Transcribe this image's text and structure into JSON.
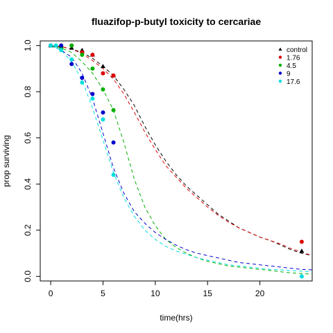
{
  "chart_data": {
    "type": "scatter",
    "title": "fluazifop-p-butyl toxicity to cercariae",
    "xlabel": "time(hrs)",
    "ylabel": "prop surviving",
    "xlim": [
      -1,
      25
    ],
    "ylim": [
      -0.02,
      1.02
    ],
    "xticks": [
      0,
      5,
      10,
      15,
      20
    ],
    "yticks": [
      0.0,
      0.2,
      0.4,
      0.6,
      0.8,
      1.0
    ],
    "grid": false,
    "legend_position": "top-right",
    "series": [
      {
        "name": "control",
        "color": "#000000",
        "marker": "triangle",
        "points": [
          [
            0,
            1.0
          ],
          [
            0.5,
            1.0
          ],
          [
            1,
            1.0
          ],
          [
            2,
            0.99
          ],
          [
            3,
            0.98
          ],
          [
            4,
            0.96
          ],
          [
            5,
            0.91
          ],
          [
            6,
            0.87
          ],
          [
            24,
            0.11
          ]
        ],
        "fit": [
          [
            0,
            1.0
          ],
          [
            1,
            0.995
          ],
          [
            2,
            0.985
          ],
          [
            3,
            0.97
          ],
          [
            4,
            0.945
          ],
          [
            5,
            0.91
          ],
          [
            6,
            0.87
          ],
          [
            7,
            0.81
          ],
          [
            8,
            0.74
          ],
          [
            9,
            0.65
          ],
          [
            10,
            0.57
          ],
          [
            11,
            0.5
          ],
          [
            12,
            0.44
          ],
          [
            13,
            0.39
          ],
          [
            14,
            0.35
          ],
          [
            15,
            0.31
          ],
          [
            16,
            0.27
          ],
          [
            17,
            0.24
          ],
          [
            18,
            0.21
          ],
          [
            19,
            0.19
          ],
          [
            20,
            0.17
          ],
          [
            21,
            0.155
          ],
          [
            22,
            0.135
          ],
          [
            23,
            0.115
          ],
          [
            24,
            0.1
          ],
          [
            25,
            0.09
          ]
        ]
      },
      {
        "name": "1.76",
        "color": "#df0000",
        "marker": "circle",
        "points": [
          [
            0,
            1.0
          ],
          [
            1,
            1.0
          ],
          [
            2,
            1.0
          ],
          [
            3,
            0.97
          ],
          [
            4,
            0.96
          ],
          [
            5,
            0.88
          ],
          [
            6,
            0.87
          ],
          [
            24,
            0.15
          ]
        ],
        "fit": [
          [
            0,
            1.0
          ],
          [
            1,
            0.995
          ],
          [
            2,
            0.985
          ],
          [
            3,
            0.965
          ],
          [
            4,
            0.935
          ],
          [
            5,
            0.9
          ],
          [
            6,
            0.855
          ],
          [
            7,
            0.79
          ],
          [
            8,
            0.71
          ],
          [
            9,
            0.625
          ],
          [
            10,
            0.55
          ],
          [
            11,
            0.48
          ],
          [
            12,
            0.43
          ],
          [
            13,
            0.38
          ],
          [
            14,
            0.34
          ],
          [
            15,
            0.3
          ],
          [
            16,
            0.265
          ],
          [
            17,
            0.235
          ],
          [
            18,
            0.21
          ],
          [
            19,
            0.19
          ],
          [
            20,
            0.17
          ],
          [
            21,
            0.155
          ],
          [
            22,
            0.14
          ],
          [
            23,
            0.12
          ],
          [
            24,
            0.105
          ],
          [
            25,
            0.09
          ]
        ]
      },
      {
        "name": "4.5",
        "color": "#00b000",
        "marker": "circle",
        "points": [
          [
            0,
            1.0
          ],
          [
            1,
            0.99
          ],
          [
            2,
            1.0
          ],
          [
            3,
            0.96
          ],
          [
            4,
            0.9
          ],
          [
            5,
            0.81
          ],
          [
            6,
            0.72
          ]
        ],
        "fit": [
          [
            0,
            1.0
          ],
          [
            1,
            0.99
          ],
          [
            2,
            0.97
          ],
          [
            3,
            0.93
          ],
          [
            4,
            0.88
          ],
          [
            5,
            0.81
          ],
          [
            6,
            0.72
          ],
          [
            7,
            0.58
          ],
          [
            8,
            0.42
          ],
          [
            9,
            0.3
          ],
          [
            10,
            0.22
          ],
          [
            11,
            0.16
          ],
          [
            12,
            0.125
          ],
          [
            13,
            0.1
          ],
          [
            14,
            0.08
          ],
          [
            15,
            0.065
          ],
          [
            16,
            0.055
          ],
          [
            17,
            0.045
          ],
          [
            18,
            0.04
          ],
          [
            19,
            0.035
          ],
          [
            20,
            0.03
          ],
          [
            21,
            0.025
          ],
          [
            22,
            0.02
          ],
          [
            23,
            0.015
          ],
          [
            24,
            0.012
          ],
          [
            25,
            0.01
          ]
        ]
      },
      {
        "name": "9",
        "color": "#0000cc",
        "marker": "circle",
        "points": [
          [
            0,
            1.0
          ],
          [
            1,
            1.0
          ],
          [
            2,
            0.92
          ],
          [
            3,
            0.86
          ],
          [
            4,
            0.79
          ],
          [
            5,
            0.71
          ],
          [
            6,
            0.58
          ]
        ],
        "fit": [
          [
            0,
            1.0
          ],
          [
            1,
            0.98
          ],
          [
            2,
            0.95
          ],
          [
            3,
            0.88
          ],
          [
            4,
            0.77
          ],
          [
            5,
            0.62
          ],
          [
            6,
            0.47
          ],
          [
            7,
            0.36
          ],
          [
            8,
            0.28
          ],
          [
            9,
            0.23
          ],
          [
            10,
            0.19
          ],
          [
            11,
            0.16
          ],
          [
            12,
            0.135
          ],
          [
            13,
            0.115
          ],
          [
            14,
            0.1
          ],
          [
            15,
            0.09
          ],
          [
            16,
            0.08
          ],
          [
            17,
            0.07
          ],
          [
            18,
            0.06
          ],
          [
            19,
            0.055
          ],
          [
            20,
            0.05
          ],
          [
            21,
            0.045
          ],
          [
            22,
            0.04
          ],
          [
            23,
            0.035
          ],
          [
            24,
            0.03
          ],
          [
            25,
            0.028
          ]
        ]
      },
      {
        "name": "17.6",
        "color": "#00dddd",
        "marker": "circle",
        "points": [
          [
            0,
            1.0
          ],
          [
            0.5,
            1.0
          ],
          [
            1,
            0.98
          ],
          [
            2,
            0.94
          ],
          [
            3,
            0.84
          ],
          [
            4,
            0.77
          ],
          [
            5,
            0.68
          ],
          [
            6,
            0.44
          ],
          [
            24,
            0.0
          ]
        ],
        "fit": [
          [
            0,
            1.0
          ],
          [
            1,
            0.98
          ],
          [
            2,
            0.93
          ],
          [
            3,
            0.85
          ],
          [
            4,
            0.73
          ],
          [
            5,
            0.59
          ],
          [
            6,
            0.45
          ],
          [
            7,
            0.34
          ],
          [
            8,
            0.26
          ],
          [
            9,
            0.2
          ],
          [
            10,
            0.16
          ],
          [
            11,
            0.13
          ],
          [
            12,
            0.11
          ],
          [
            13,
            0.095
          ],
          [
            14,
            0.08
          ],
          [
            15,
            0.07
          ],
          [
            16,
            0.06
          ],
          [
            17,
            0.05
          ],
          [
            18,
            0.045
          ],
          [
            19,
            0.04
          ],
          [
            20,
            0.035
          ],
          [
            21,
            0.03
          ],
          [
            22,
            0.028
          ],
          [
            23,
            0.025
          ],
          [
            24,
            0.022
          ],
          [
            25,
            0.02
          ]
        ]
      }
    ]
  }
}
